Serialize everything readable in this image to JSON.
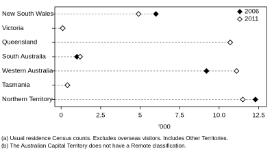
{
  "chart_data": {
    "type": "dot",
    "categories": [
      "New South Wales",
      "Victoria",
      "Queensland",
      "South Australia",
      "Western Australia",
      "Tasmania",
      "Northern Territory"
    ],
    "series": [
      {
        "name": "2006",
        "color": "#000000",
        "filled": true,
        "values": [
          6.0,
          0.1,
          10.7,
          1.0,
          9.2,
          0.4,
          12.3
        ]
      },
      {
        "name": "2011",
        "color": "#000000",
        "filled": false,
        "values": [
          4.9,
          0.1,
          10.7,
          1.2,
          11.1,
          0.4,
          11.5
        ]
      }
    ],
    "xlabel": "'000",
    "xlim": [
      -0.4,
      13.0
    ],
    "xticks": [
      0,
      2.5,
      5,
      7.5,
      {
        "value": 10,
        "label": "10.0"
      },
      12.5
    ],
    "legend": "top-right",
    "footnotes": [
      "(a) Usual residence Census counts. Excludes overseas visitors. Includes Other Territories.",
      "(b) The Australian Capital Territory does not have a Remote classification."
    ]
  }
}
